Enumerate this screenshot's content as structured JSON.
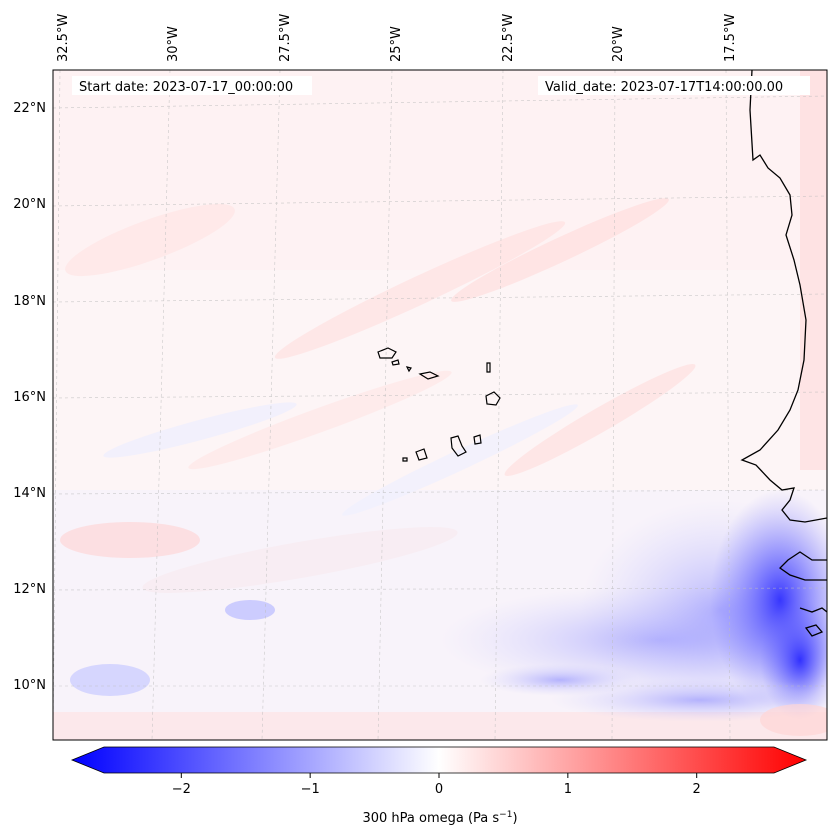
{
  "map": {
    "start_date_label": "Start date: 2023-07-17_00:00:00",
    "valid_date_label": "Valid_date: 2023-07-17T14:00:00.00",
    "top_longitude_labels": [
      "32.5°W",
      "30°W",
      "27.5°W",
      "25°W",
      "22.5°W",
      "20°W",
      "17.5°W"
    ],
    "left_latitude_labels": [
      "22°N",
      "20°N",
      "18°N",
      "16°N",
      "14°N",
      "12°N",
      "10°N"
    ],
    "gridlines": true
  },
  "colorbar": {
    "label": "300 hPa omega (Pa s",
    "label_exponent": "−1",
    "label_close": ")",
    "ticks": [
      "−2",
      "−1",
      "0",
      "1",
      "2"
    ],
    "tick_values": [
      -2,
      -1,
      0,
      1,
      2
    ],
    "range": [
      -2.6,
      2.6
    ],
    "extend": "both",
    "colors": {
      "low": "#0000ff",
      "mid": "#ffffff",
      "high": "#ff0000"
    }
  },
  "field": {
    "variable": "omega",
    "level": "300 hPa"
  }
}
